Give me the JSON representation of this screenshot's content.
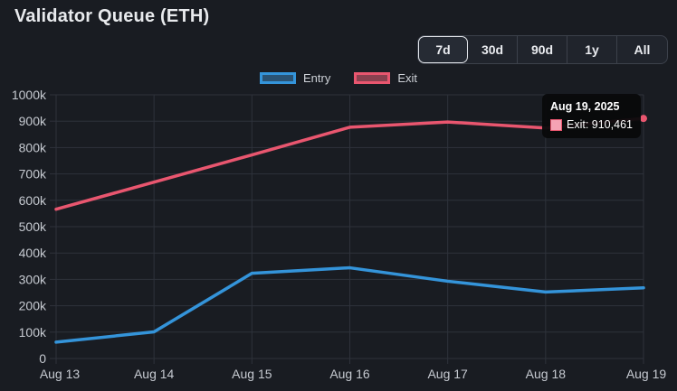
{
  "header": {
    "title": "Validator Queue (ETH)"
  },
  "range_selector": {
    "options": [
      "7d",
      "30d",
      "90d",
      "1y",
      "All"
    ],
    "selected": "7d"
  },
  "tooltip": {
    "title": "Aug 19, 2025",
    "label": "Exit: 910,461",
    "swatch_fill": "#f5a3b4",
    "swatch_border": "#e9566f"
  },
  "colors": {
    "background": "#191c22",
    "grid": "#2e323b",
    "axis_text": "#c6cad1",
    "title_text": "#e8eaed"
  },
  "chart_data": {
    "type": "line",
    "title": "Validator Queue (ETH)",
    "x": [
      "Aug 13",
      "Aug 14",
      "Aug 15",
      "Aug 16",
      "Aug 17",
      "Aug 18",
      "Aug 19"
    ],
    "series": [
      {
        "name": "Entry",
        "color": "#3494da",
        "fill": "#2a5374",
        "values": [
          62000,
          101000,
          323000,
          344000,
          293000,
          252000,
          268000
        ]
      },
      {
        "name": "Exit",
        "color": "#e9566f",
        "fill": "#8a4150",
        "values": [
          566000,
          669000,
          772000,
          877000,
          897000,
          874000,
          910461
        ]
      }
    ],
    "ylim": [
      0,
      1000000
    ],
    "ytick_step": 100000,
    "ytick_labels": [
      "0",
      "100k",
      "200k",
      "300k",
      "400k",
      "500k",
      "600k",
      "700k",
      "800k",
      "900k",
      "1000k"
    ],
    "grid": true,
    "legend_position": "top",
    "highlight": {
      "series": "Exit",
      "x": "Aug 19",
      "value": 910461
    }
  }
}
